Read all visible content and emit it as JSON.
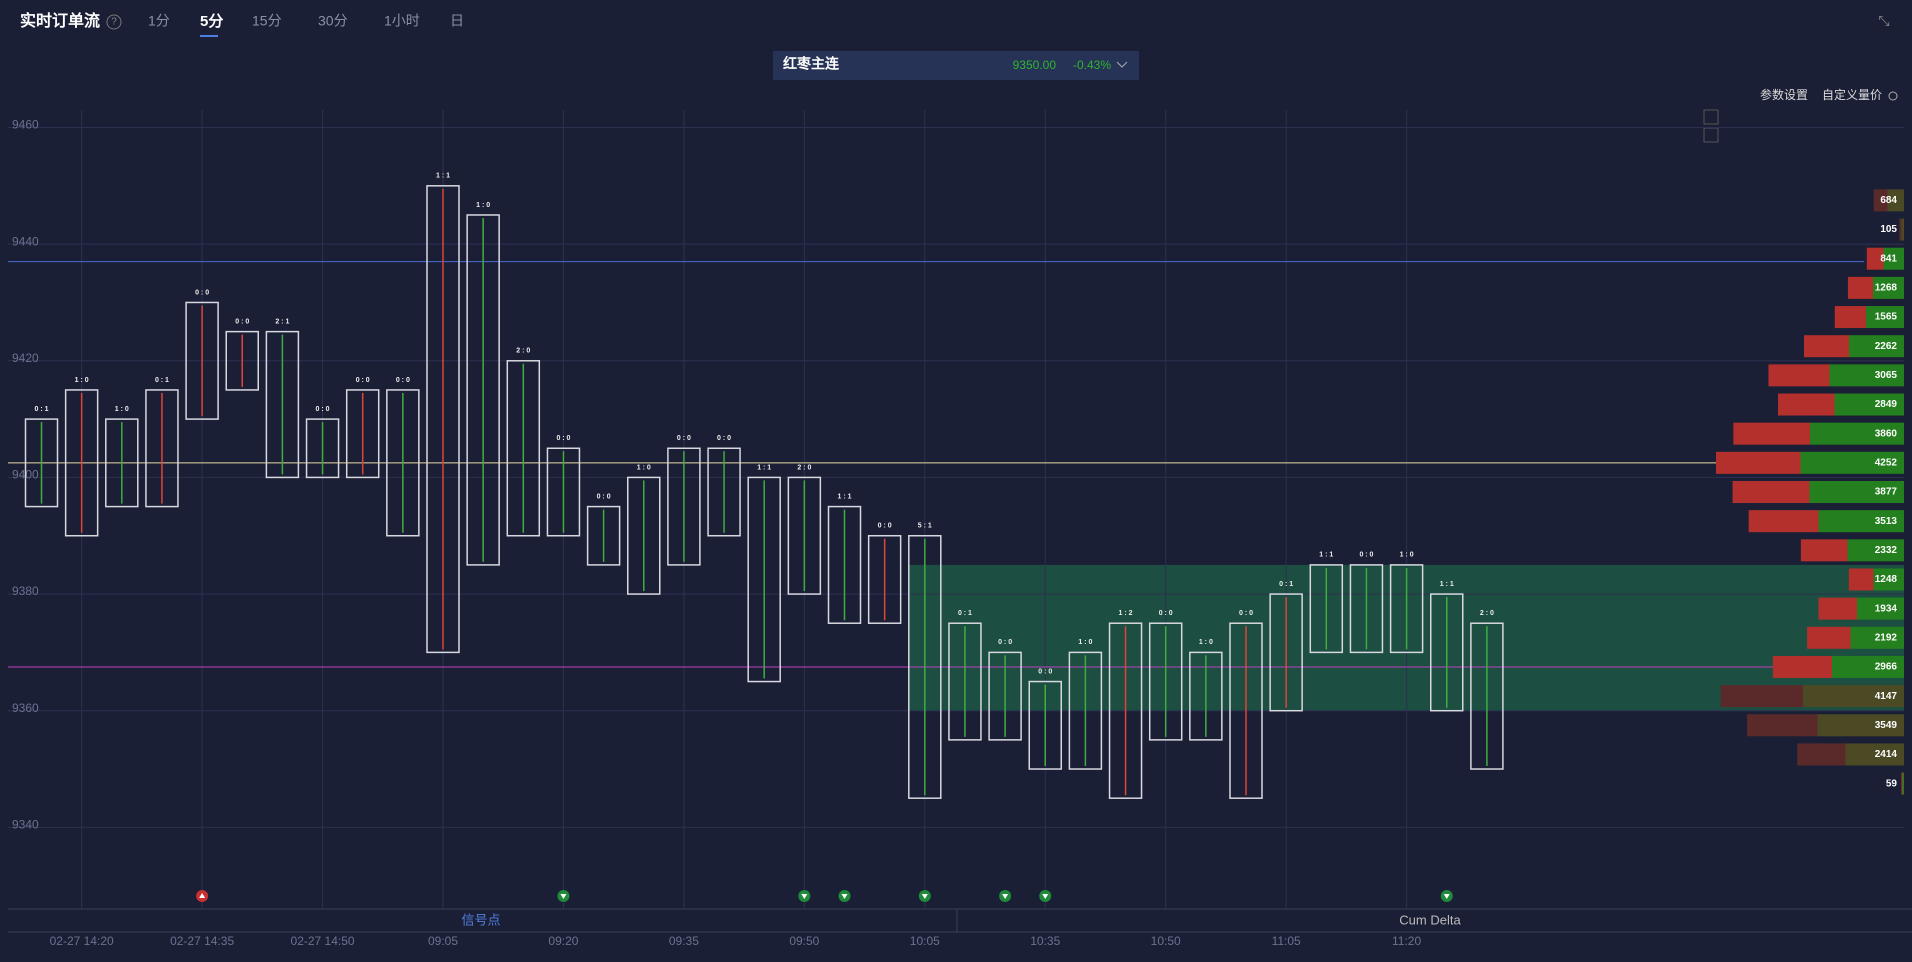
{
  "header": {
    "title": "实时订单流",
    "help": "?",
    "tabs": [
      "1分",
      "5分",
      "15分",
      "30分",
      "1小时",
      "日"
    ],
    "active_tab": 1
  },
  "symbol": {
    "name": "红枣主连",
    "price": "9350.00",
    "change": "-0.43%"
  },
  "toolbar": [
    "参数设置",
    "自定义量价"
  ],
  "panels": [
    "信号点",
    "Cum Delta"
  ],
  "chart_data": {
    "type": "footprint",
    "categories": [
      null,
      "02-27 14:20",
      null,
      null,
      "02-27 14:35",
      null,
      null,
      "02-27 14:50",
      null,
      null,
      "09:05",
      null,
      null,
      "09:20",
      null,
      null,
      "09:35",
      null,
      null,
      "09:50",
      null,
      null,
      "10:05",
      null,
      null,
      "10:35",
      null,
      null,
      "10:50",
      null,
      null,
      "11:05",
      null,
      null,
      "11:20",
      null,
      null
    ],
    "high": [
      9410,
      9415,
      9410,
      9415,
      9430,
      9425,
      9425,
      9410,
      9415,
      9415,
      9450,
      9445,
      9420,
      9405,
      9395,
      9400,
      9405,
      9405,
      9400,
      9400,
      9395,
      9390,
      9390,
      9375,
      9370,
      9365,
      9370,
      9375,
      9375,
      9370,
      9375,
      9380,
      9385,
      9385,
      9385,
      9380,
      9375
    ],
    "low": [
      9395,
      9390,
      9395,
      9395,
      9410,
      9415,
      9400,
      9400,
      9400,
      9390,
      9370,
      9385,
      9390,
      9390,
      9385,
      9380,
      9385,
      9390,
      9365,
      9380,
      9375,
      9375,
      9345,
      9355,
      9355,
      9350,
      9350,
      9345,
      9355,
      9355,
      9345,
      9360,
      9370,
      9370,
      9370,
      9360,
      9350
    ],
    "ratio_labels": [
      "0 : 1",
      "1 : 0",
      "1 : 0",
      "0 : 1",
      "0 : 0",
      "0 : 0",
      "2 : 1",
      "0 : 0",
      "0 : 0",
      "0 : 0",
      "1 : 1",
      "1 : 0",
      "2 : 0",
      "0 : 0",
      "0 : 0",
      "1 : 0",
      "0 : 0",
      "0 : 0",
      "1 : 1",
      "2 : 0",
      "1 : 1",
      "0 : 0",
      "5 : 1",
      "0 : 1",
      "0 : 0",
      "0 : 0",
      "1 : 0",
      "1 : 2",
      "0 : 0",
      "1 : 0",
      "0 : 0",
      "0 : 1",
      "1 : 1",
      "0 : 0",
      "1 : 0",
      "1 : 1",
      "2 : 0"
    ],
    "colors": [
      "#3fae3f",
      "#e0443a",
      "#3fae3f",
      "#e0443a",
      "#e0443a",
      "#e0443a",
      "#3fae3f",
      "#3fae3f",
      "#e0443a",
      "#3fae3f",
      "#e0443a",
      "#3fae3f",
      "#3fae3f",
      "#3fae3f",
      "#3fae3f",
      "#3fae3f",
      "#3fae3f",
      "#3fae3f",
      "#3fae3f",
      "#3fae3f",
      "#3fae3f",
      "#e0443a",
      "#3fae3f",
      "#3fae3f",
      "#3fae3f",
      "#3fae3f",
      "#3fae3f",
      "#e0443a",
      "#3fae3f",
      "#3fae3f",
      "#e0443a",
      "#e0443a",
      "#3fae3f",
      "#3fae3f",
      "#3fae3f",
      "#3fae3f",
      "#3fae3f"
    ],
    "signals": [
      null,
      null,
      null,
      null,
      "up",
      null,
      null,
      null,
      null,
      null,
      null,
      null,
      null,
      "down",
      null,
      null,
      null,
      null,
      null,
      "down",
      "down",
      null,
      "down",
      null,
      "down",
      "down",
      null,
      null,
      null,
      null,
      null,
      null,
      null,
      null,
      null,
      "down",
      null
    ],
    "ylim": [
      9326,
      9463
    ],
    "yticks": [
      9340,
      9360,
      9380,
      9400,
      9420,
      9440,
      9460
    ],
    "grid": true,
    "levels": [
      {
        "price": 9437,
        "color": "#4a6bd6"
      },
      {
        "price": 9402.5,
        "color": "#e8d9a0"
      },
      {
        "price": 9367.5,
        "color": "#c040c0"
      }
    ],
    "zone": {
      "range": [
        9360,
        9385
      ],
      "color": "#1d5a45"
    },
    "profile": {
      "prices": [
        9447.5,
        9442.5,
        9437.5,
        9432.5,
        9427.5,
        9422.5,
        9417.5,
        9412.5,
        9407.5,
        9402.5,
        9397.5,
        9392.5,
        9387.5,
        9382.5,
        9377.5,
        9372.5,
        9367.5,
        9362.5,
        9357.5,
        9352.5,
        9347.5
      ],
      "values": [
        684,
        105,
        841,
        1268,
        1565,
        2262,
        3065,
        2849,
        3860,
        4252,
        3877,
        3513,
        2332,
        1248,
        1934,
        2192,
        2966,
        4147,
        3549,
        2414,
        59
      ],
      "styles": [
        "muted",
        "muted",
        "split",
        "split",
        "split",
        "split",
        "split",
        "split",
        "split",
        "split",
        "split",
        "split",
        "split",
        "split",
        "split",
        "split",
        "split",
        "muted",
        "muted",
        "muted",
        "split"
      ]
    }
  }
}
